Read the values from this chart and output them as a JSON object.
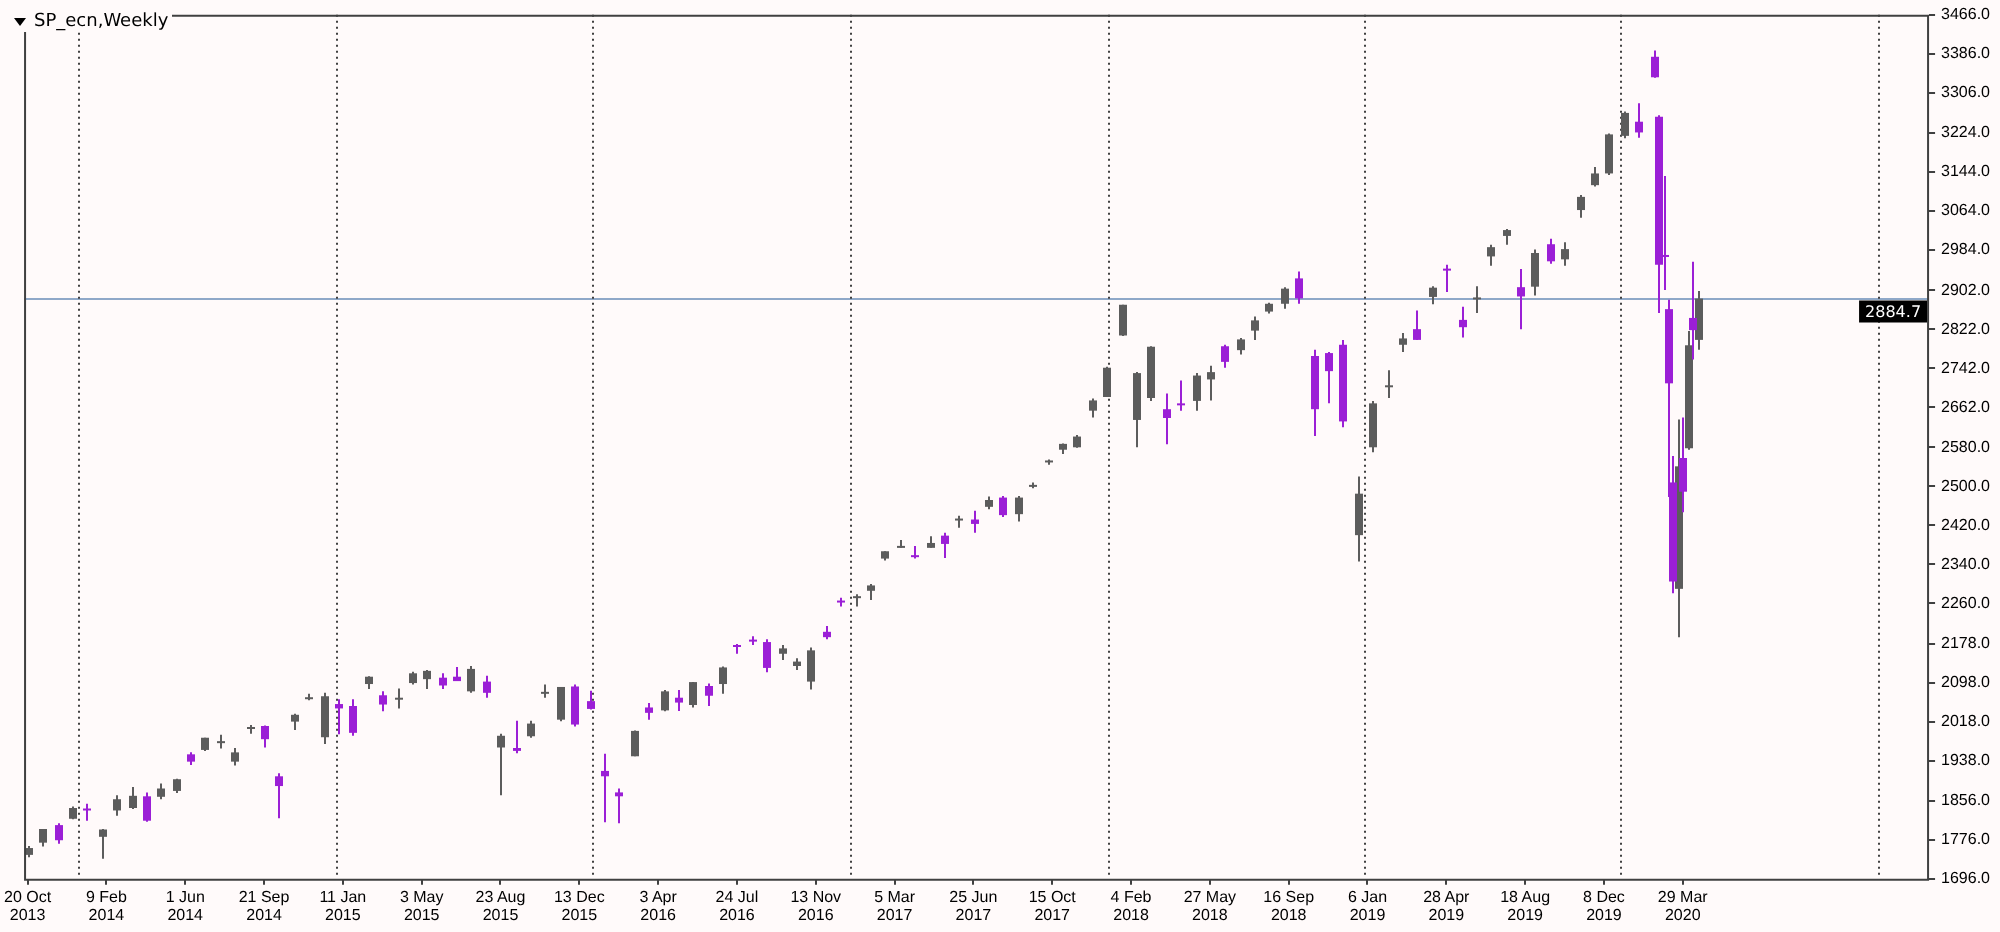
{
  "chart_data": {
    "type": "candlestick",
    "title": "SP_ecn,Weekly",
    "xlim": [
      "2013-10-15",
      "2021-03-14"
    ],
    "xticks": [
      {
        "value": "2013-10-20",
        "label": "20 Oct 2013"
      },
      {
        "value": "2014-02-09",
        "label": "9 Feb 2014"
      },
      {
        "value": "2014-06-01",
        "label": "1 Jun 2014"
      },
      {
        "value": "2014-09-21",
        "label": "21 Sep 2014"
      },
      {
        "value": "2015-01-11",
        "label": "11 Jan 2015"
      },
      {
        "value": "2015-05-03",
        "label": "3 May 2015"
      },
      {
        "value": "2015-08-23",
        "label": "23 Aug 2015"
      },
      {
        "value": "2015-12-13",
        "label": "13 Dec 2015"
      },
      {
        "value": "2016-04-03",
        "label": "3 Apr 2016"
      },
      {
        "value": "2016-07-24",
        "label": "24 Jul 2016"
      },
      {
        "value": "2016-11-13",
        "label": "13 Nov 2016"
      },
      {
        "value": "2017-03-05",
        "label": "5 Mar 2017"
      },
      {
        "value": "2017-06-25",
        "label": "25 Jun 2017"
      },
      {
        "value": "2017-10-15",
        "label": "15 Oct 2017"
      },
      {
        "value": "2018-02-04",
        "label": "4 Feb 2018"
      },
      {
        "value": "2018-05-27",
        "label": "27 May 2018"
      },
      {
        "value": "2018-09-16",
        "label": "16 Sep 2018"
      },
      {
        "value": "2019-01-06",
        "label": "6 Jan 2019"
      },
      {
        "value": "2019-04-28",
        "label": "28 Apr 2019"
      },
      {
        "value": "2019-08-18",
        "label": "18 Aug 2019"
      },
      {
        "value": "2019-12-08",
        "label": "8 Dec 2019"
      },
      {
        "value": "2020-03-29",
        "label": "29 Mar 2020"
      }
    ],
    "ylim": [
      1696,
      3466
    ],
    "yticks": [
      {
        "value": 1696,
        "label": "1696.0"
      },
      {
        "value": 1776,
        "label": "1776.0"
      },
      {
        "value": 1856,
        "label": "1856.0"
      },
      {
        "value": 1938,
        "label": "1938.0"
      },
      {
        "value": 2018,
        "label": "2018.0"
      },
      {
        "value": 2098,
        "label": "2098.0"
      },
      {
        "value": 2178,
        "label": "2178.0"
      },
      {
        "value": 2260,
        "label": "2260.0"
      },
      {
        "value": 2340,
        "label": "2340.0"
      },
      {
        "value": 2420,
        "label": "2420.0"
      },
      {
        "value": 2500,
        "label": "2500.0"
      },
      {
        "value": 2580,
        "label": "2580.0"
      },
      {
        "value": 2662,
        "label": "2662.0"
      },
      {
        "value": 2742,
        "label": "2742.0"
      },
      {
        "value": 2822,
        "label": "2822.0"
      },
      {
        "value": 2902,
        "label": "2902.0"
      },
      {
        "value": 2984,
        "label": "2984.0"
      },
      {
        "value": 3064,
        "label": "3064.0"
      },
      {
        "value": 3144,
        "label": "3144.0"
      },
      {
        "value": 3224,
        "label": "3224.0"
      },
      {
        "value": 3306,
        "label": "3306.0"
      },
      {
        "value": 3386,
        "label": "3386.0"
      },
      {
        "value": 3466,
        "label": "3466.0"
      }
    ],
    "ref_lines": [
      {
        "axis": "y",
        "value": 2884.7,
        "label": "2884.7",
        "color": "#8fa8c8",
        "line_style": "solid"
      },
      {
        "axis": "x",
        "value": "2014-01-01",
        "color": "#404040",
        "line_style": "dotted"
      },
      {
        "axis": "x",
        "value": "2015-01-01",
        "color": "#404040",
        "line_style": "dotted"
      },
      {
        "axis": "x",
        "value": "2016-01-01",
        "color": "#404040",
        "line_style": "dotted"
      },
      {
        "axis": "x",
        "value": "2017-01-01",
        "color": "#404040",
        "line_style": "dotted"
      },
      {
        "axis": "x",
        "value": "2018-01-01",
        "color": "#404040",
        "line_style": "dotted"
      },
      {
        "axis": "x",
        "value": "2019-01-01",
        "color": "#404040",
        "line_style": "dotted"
      },
      {
        "axis": "x",
        "value": "2020-01-01",
        "color": "#404040",
        "line_style": "dotted"
      },
      {
        "axis": "x",
        "value": "2021-01-01",
        "color": "#404040",
        "line_style": "dotted"
      }
    ],
    "legend": false,
    "series": [
      {
        "color": "#5c5c5c",
        "x": [
          "2013-10-20",
          "2013-11-10",
          "2013-12-22",
          "2014-02-02",
          "2014-02-23",
          "2014-03-16",
          "2014-04-27",
          "2014-05-18",
          "2014-06-29",
          "2014-07-20",
          "2014-08-10",
          "2014-08-31",
          "2014-11-02",
          "2014-11-23",
          "2014-12-14",
          "2015-02-15",
          "2015-03-29",
          "2015-04-19",
          "2015-05-10",
          "2015-07-12",
          "2015-08-23",
          "2015-10-04",
          "2015-10-25",
          "2015-11-15",
          "2016-02-28",
          "2016-04-10",
          "2016-05-22",
          "2016-07-03",
          "2016-09-25",
          "2016-10-16",
          "2016-11-06",
          "2017-01-08",
          "2017-01-29",
          "2017-02-19",
          "2017-03-12",
          "2017-04-23",
          "2017-06-04",
          "2017-07-16",
          "2017-08-27",
          "2017-09-17",
          "2017-10-08",
          "2017-10-29",
          "2017-11-19",
          "2017-12-10",
          "2017-12-31",
          "2018-01-21",
          "2018-02-11",
          "2018-03-04",
          "2018-05-06",
          "2018-05-27",
          "2018-07-08",
          "2018-07-29",
          "2018-08-19",
          "2018-09-09",
          "2018-12-23",
          "2019-01-13",
          "2019-02-03",
          "2019-02-24",
          "2019-04-07",
          "2019-06-09",
          "2019-06-30",
          "2019-07-21",
          "2019-09-01",
          "2019-10-13",
          "2019-11-03",
          "2019-11-24",
          "2019-12-15",
          "2020-01-05",
          "2020-03-22",
          "2020-04-05",
          "2020-04-19"
        ],
        "ohlc": [
          [
            1745,
            1763,
            1740,
            1759
          ],
          [
            1770,
            1798,
            1762,
            1798
          ],
          [
            1819,
            1844,
            1818,
            1841
          ],
          [
            1782,
            1798,
            1737,
            1797
          ],
          [
            1836,
            1867,
            1825,
            1859
          ],
          [
            1841,
            1884,
            1839,
            1866
          ],
          [
            1864,
            1891,
            1859,
            1881
          ],
          [
            1876,
            1901,
            1872,
            1900
          ],
          [
            1960,
            1985,
            1958,
            1985
          ],
          [
            1977,
            1991,
            1963,
            1978
          ],
          [
            1936,
            1964,
            1928,
            1955
          ],
          [
            2004,
            2011,
            1993,
            2007
          ],
          [
            2018,
            2034,
            2001,
            2032
          ],
          [
            2064,
            2075,
            2062,
            2068
          ],
          [
            1986,
            2077,
            1972,
            2070
          ],
          [
            2095,
            2111,
            2085,
            2110
          ],
          [
            2064,
            2086,
            2045,
            2067
          ],
          [
            2097,
            2120,
            2094,
            2117
          ],
          [
            2105,
            2124,
            2085,
            2122
          ],
          [
            2080,
            2132,
            2077,
            2126
          ],
          [
            1965,
            1993,
            1867,
            1989
          ],
          [
            1988,
            2020,
            1985,
            2014
          ],
          [
            2075,
            2094,
            2067,
            2079
          ],
          [
            2022,
            2089,
            2019,
            2089
          ],
          [
            1947,
            2000,
            1947,
            1999
          ],
          [
            2041,
            2083,
            2039,
            2080
          ],
          [
            2052,
            2099,
            2047,
            2099
          ],
          [
            2095,
            2131,
            2075,
            2129
          ],
          [
            2157,
            2175,
            2144,
            2168
          ],
          [
            2132,
            2148,
            2124,
            2141
          ],
          [
            2100,
            2170,
            2084,
            2164
          ],
          [
            2273,
            2279,
            2254,
            2275
          ],
          [
            2286,
            2300,
            2267,
            2297
          ],
          [
            2352,
            2367,
            2348,
            2367
          ],
          [
            2374,
            2390,
            2374,
            2378
          ],
          [
            2374,
            2398,
            2374,
            2384
          ],
          [
            2432,
            2440,
            2415,
            2434
          ],
          [
            2458,
            2479,
            2453,
            2472
          ],
          [
            2443,
            2480,
            2428,
            2477
          ],
          [
            2502,
            2508,
            2496,
            2503
          ],
          [
            2550,
            2555,
            2544,
            2553
          ],
          [
            2575,
            2588,
            2566,
            2587
          ],
          [
            2580,
            2605,
            2579,
            2602
          ],
          [
            2655,
            2680,
            2641,
            2676
          ],
          [
            2683,
            2745,
            2683,
            2743
          ],
          [
            2809,
            2872,
            2808,
            2872
          ],
          [
            2636,
            2734,
            2580,
            2732
          ],
          [
            2681,
            2787,
            2675,
            2786
          ],
          [
            2675,
            2732,
            2655,
            2727
          ],
          [
            2719,
            2747,
            2676,
            2734
          ],
          [
            2779,
            2804,
            2770,
            2801
          ],
          [
            2819,
            2848,
            2800,
            2840
          ],
          [
            2858,
            2876,
            2854,
            2874
          ],
          [
            2874,
            2908,
            2864,
            2905
          ],
          [
            2400,
            2520,
            2346,
            2485
          ],
          [
            2580,
            2675,
            2570,
            2670
          ],
          [
            2706,
            2738,
            2681,
            2707
          ],
          [
            2790,
            2814,
            2775,
            2803
          ],
          [
            2888,
            2910,
            2873,
            2907
          ],
          [
            2886,
            2910,
            2855,
            2887
          ],
          [
            2971,
            2995,
            2952,
            2990
          ],
          [
            3013,
            3027,
            2995,
            3025
          ],
          [
            2909,
            2985,
            2891,
            2978
          ],
          [
            2965,
            3000,
            2952,
            2986
          ],
          [
            3066,
            3097,
            3050,
            3093
          ],
          [
            3117,
            3154,
            3114,
            3141
          ],
          [
            3141,
            3223,
            3138,
            3221
          ],
          [
            3218,
            3268,
            3213,
            3265
          ],
          [
            2290,
            2637,
            2191,
            2541
          ],
          [
            2578,
            2818,
            2575,
            2789
          ],
          [
            2800,
            2900,
            2780,
            2884.7
          ]
        ]
      },
      {
        "color": "#9b1fd6",
        "x": [
          "2013-12-01",
          "2014-01-12",
          "2014-04-06",
          "2014-06-08",
          "2014-09-21",
          "2014-10-12",
          "2015-01-04",
          "2015-01-25",
          "2015-03-08",
          "2015-05-31",
          "2015-06-21",
          "2015-08-02",
          "2015-09-13",
          "2015-12-06",
          "2015-12-27",
          "2016-01-17",
          "2016-02-07",
          "2016-03-20",
          "2016-05-01",
          "2016-06-12",
          "2016-07-24",
          "2016-08-14",
          "2016-09-04",
          "2016-11-27",
          "2016-12-18",
          "2017-04-02",
          "2017-05-14",
          "2017-06-25",
          "2017-08-06",
          "2018-03-25",
          "2018-04-15",
          "2018-06-17",
          "2018-09-30",
          "2018-10-21",
          "2018-11-11",
          "2018-12-02",
          "2019-03-17",
          "2019-04-28",
          "2019-05-19",
          "2019-08-11",
          "2019-09-22",
          "2020-01-26",
          "2020-02-16",
          "2020-02-23",
          "2020-03-01",
          "2020-03-08",
          "2020-03-15",
          "2020-03-29",
          "2020-04-12"
        ],
        "ohlc": [
          [
            1806,
            1810,
            1768,
            1775
          ],
          [
            1840,
            1850,
            1815,
            1838
          ],
          [
            1865,
            1873,
            1813,
            1815
          ],
          [
            1951,
            1955,
            1929,
            1936
          ],
          [
            2009,
            2010,
            1965,
            1982
          ],
          [
            1906,
            1912,
            1820,
            1886
          ],
          [
            2054,
            2064,
            1992,
            2045
          ],
          [
            2050,
            2064,
            1989,
            1995
          ],
          [
            2072,
            2080,
            2039,
            2053
          ],
          [
            2108,
            2117,
            2085,
            2092
          ],
          [
            2110,
            2130,
            2101,
            2101
          ],
          [
            2100,
            2112,
            2067,
            2077
          ],
          [
            1964,
            2020,
            1953,
            1958
          ],
          [
            2090,
            2094,
            2008,
            2012
          ],
          [
            2060,
            2081,
            2043,
            2044
          ],
          [
            1917,
            1952,
            1812,
            1906
          ],
          [
            1873,
            1881,
            1810,
            1865
          ],
          [
            2047,
            2056,
            2022,
            2036
          ],
          [
            2067,
            2083,
            2040,
            2057
          ],
          [
            2091,
            2096,
            2050,
            2071
          ],
          [
            2175,
            2177,
            2157,
            2173
          ],
          [
            2186,
            2193,
            2175,
            2183
          ],
          [
            2181,
            2187,
            2119,
            2128
          ],
          [
            2202,
            2214,
            2187,
            2191
          ],
          [
            2266,
            2272,
            2254,
            2263
          ],
          [
            2359,
            2378,
            2352,
            2355
          ],
          [
            2399,
            2405,
            2353,
            2382
          ],
          [
            2432,
            2450,
            2405,
            2423
          ],
          [
            2477,
            2480,
            2437,
            2441
          ],
          [
            2658,
            2690,
            2586,
            2640
          ],
          [
            2670,
            2717,
            2655,
            2668
          ],
          [
            2787,
            2790,
            2743,
            2755
          ],
          [
            2926,
            2940,
            2874,
            2885
          ],
          [
            2767,
            2780,
            2603,
            2658
          ],
          [
            2773,
            2775,
            2670,
            2736
          ],
          [
            2790,
            2800,
            2621,
            2633
          ],
          [
            2822,
            2860,
            2800,
            2800
          ],
          [
            2946,
            2954,
            2898,
            2945
          ],
          [
            2841,
            2868,
            2805,
            2826
          ],
          [
            2908,
            2945,
            2822,
            2889
          ],
          [
            2996,
            3007,
            2956,
            2961
          ],
          [
            3247,
            3285,
            3214,
            3225
          ],
          [
            3380,
            3393,
            3337,
            3338
          ],
          [
            3257,
            3260,
            2855,
            2954
          ],
          [
            2974,
            3136,
            2902,
            2972
          ],
          [
            2863,
            2882,
            2478,
            2711
          ],
          [
            2508,
            2562,
            2281,
            2305
          ],
          [
            2558,
            2641,
            2447,
            2489
          ],
          [
            2845,
            2960,
            2760,
            2820
          ]
        ]
      }
    ]
  }
}
